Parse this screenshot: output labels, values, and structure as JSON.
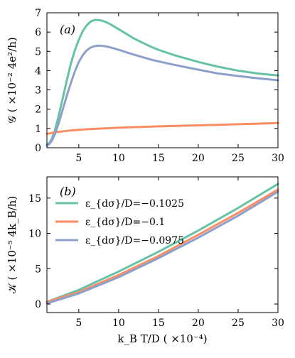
{
  "chart_data": [
    {
      "type": "line",
      "panel_label": "(a)",
      "ylabel": "𝒢 ( ×10⁻² 4e²/h)",
      "xlim": [
        1,
        30
      ],
      "ylim": [
        0,
        7
      ],
      "xticks": [
        5,
        10,
        15,
        20,
        25,
        30
      ],
      "yticks": [
        0,
        1,
        2,
        3,
        4,
        5,
        6,
        7
      ],
      "grid": false,
      "series": [
        {
          "name": "ε_{dσ}/D=−0.1025",
          "color": "#66c2a5",
          "x": [
            1.0,
            1.3,
            1.6,
            2.0,
            2.5,
            3.0,
            3.5,
            4.0,
            4.5,
            5.0,
            5.5,
            6.0,
            6.5,
            7.0,
            7.5,
            8.0,
            8.5,
            9.0,
            10,
            11,
            12,
            13,
            14,
            15,
            17,
            20,
            22.5,
            25,
            27.5,
            30
          ],
          "y": [
            0.15,
            0.25,
            0.45,
            0.9,
            1.7,
            2.6,
            3.5,
            4.35,
            5.05,
            5.6,
            6.05,
            6.35,
            6.55,
            6.63,
            6.62,
            6.58,
            6.5,
            6.4,
            6.15,
            5.9,
            5.65,
            5.45,
            5.25,
            5.08,
            4.8,
            4.45,
            4.2,
            4.0,
            3.85,
            3.75
          ]
        },
        {
          "name": "ε_{dσ}/D=−0.1",
          "color": "#fc8d62",
          "x": [
            1.0,
            1.5,
            2.0,
            3.0,
            4.0,
            5.0,
            6.0,
            8.0,
            10,
            12,
            15,
            18,
            20,
            22.5,
            25,
            27.5,
            30
          ],
          "y": [
            0.72,
            0.76,
            0.8,
            0.85,
            0.9,
            0.93,
            0.96,
            1.0,
            1.04,
            1.07,
            1.11,
            1.14,
            1.16,
            1.19,
            1.22,
            1.25,
            1.28
          ]
        },
        {
          "name": "ε_{dσ}/D=−0.0975",
          "color": "#8da0cb",
          "x": [
            1.0,
            1.3,
            1.6,
            2.0,
            2.5,
            3.0,
            3.5,
            4.0,
            4.5,
            5.0,
            5.5,
            6.0,
            6.5,
            7.0,
            7.5,
            8.0,
            8.5,
            9.0,
            9.5,
            10,
            11,
            12,
            13,
            14,
            15,
            17,
            20,
            22.5,
            25,
            27.5,
            30
          ],
          "y": [
            0.1,
            0.2,
            0.35,
            0.7,
            1.3,
            2.0,
            2.7,
            3.35,
            3.95,
            4.45,
            4.8,
            5.05,
            5.2,
            5.27,
            5.3,
            5.28,
            5.25,
            5.2,
            5.14,
            5.08,
            4.95,
            4.82,
            4.7,
            4.58,
            4.48,
            4.3,
            4.05,
            3.85,
            3.72,
            3.6,
            3.5
          ]
        }
      ]
    },
    {
      "type": "line",
      "panel_label": "(b)",
      "xlabel": "k_B T/D ( ×10⁻⁴)",
      "ylabel": "𝒦 ( ×10⁻⁵ 4k_B/h)",
      "xlim": [
        1,
        30
      ],
      "ylim": [
        -1.2,
        18
      ],
      "xticks": [
        5,
        10,
        15,
        20,
        25,
        30
      ],
      "yticks": [
        0,
        5,
        10,
        15
      ],
      "grid": false,
      "legend": "upper-left",
      "series": [
        {
          "name": "ε_{dσ}/D=−0.1025",
          "color": "#66c2a5",
          "x": [
            1,
            5,
            10,
            15,
            20,
            25,
            30
          ],
          "y": [
            0.3,
            2.0,
            4.6,
            7.4,
            10.4,
            13.6,
            17.0
          ]
        },
        {
          "name": "ε_{dσ}/D=−0.1",
          "color": "#fc8d62",
          "x": [
            1,
            5,
            10,
            15,
            20,
            25,
            30
          ],
          "y": [
            0.3,
            1.7,
            4.1,
            6.8,
            9.8,
            12.9,
            16.2
          ]
        },
        {
          "name": "ε_{dσ}/D=−0.0975",
          "color": "#8da0cb",
          "x": [
            1,
            5,
            10,
            15,
            20,
            25,
            30
          ],
          "y": [
            0.1,
            1.5,
            3.8,
            6.5,
            9.4,
            12.5,
            15.9
          ]
        }
      ]
    }
  ]
}
